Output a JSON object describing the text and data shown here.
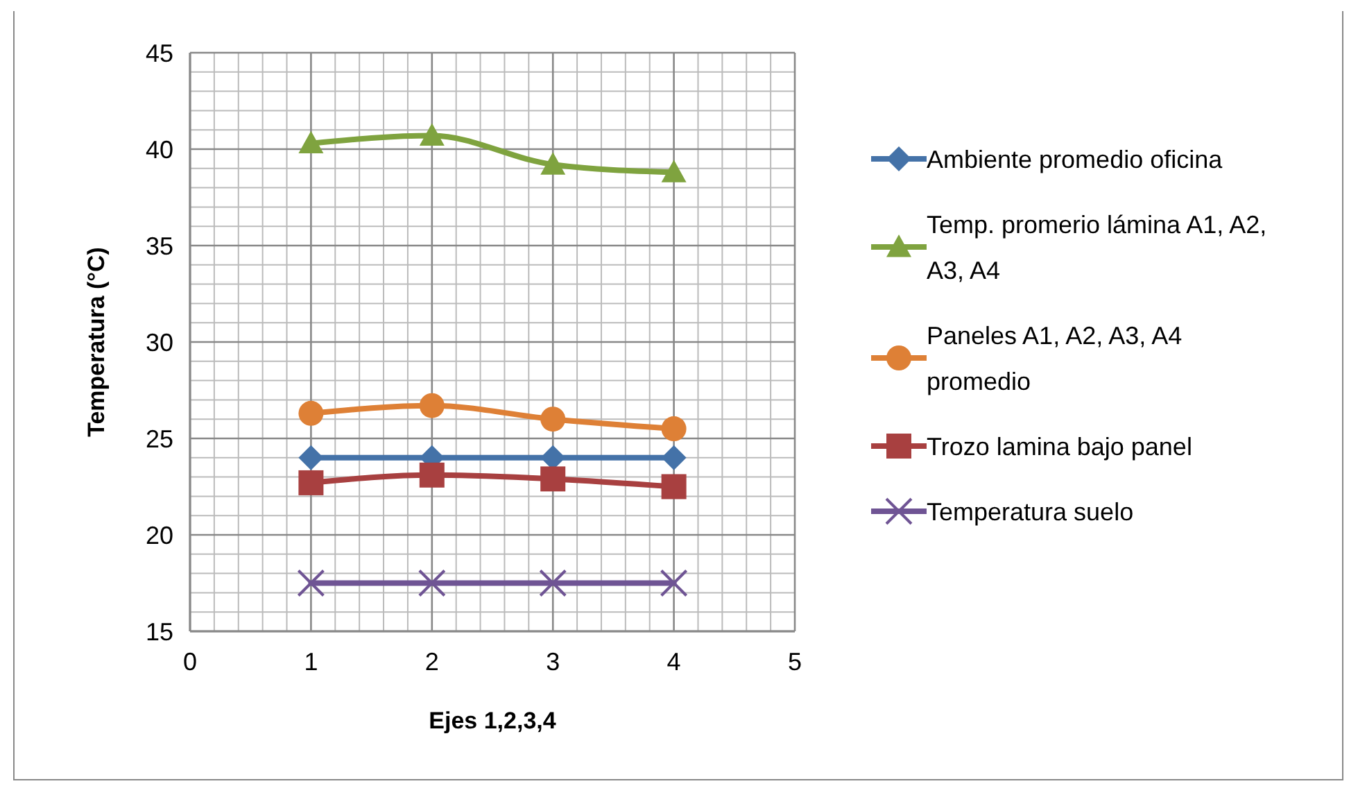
{
  "chart_data": {
    "type": "line",
    "xlabel": "Ejes 1,2,3,4",
    "ylabel": "Temperatura (°C)",
    "x": [
      1,
      2,
      3,
      4
    ],
    "xlim": [
      0,
      5
    ],
    "xticks": [
      0,
      1,
      2,
      3,
      4,
      5
    ],
    "ylim": [
      15,
      45
    ],
    "yticks": [
      15,
      20,
      25,
      30,
      35,
      40,
      45
    ],
    "grid": true,
    "legend": "right",
    "series": [
      {
        "name": "Ambiente promedio oficina",
        "color": "#4472a8",
        "marker": "diamond",
        "values": [
          24,
          24,
          24,
          24
        ]
      },
      {
        "name": "Temp. promerio lámina A1, A2, A3, A4",
        "color": "#7fa33f",
        "marker": "triangle",
        "values": [
          40.3,
          40.7,
          39.2,
          38.8
        ]
      },
      {
        "name": "Paneles A1, A2, A3, A4 promedio",
        "color": "#de8036",
        "marker": "circle",
        "values": [
          26.3,
          26.7,
          26.0,
          25.5
        ]
      },
      {
        "name": "Trozo lamina bajo panel",
        "color": "#a84040",
        "marker": "square",
        "values": [
          22.7,
          23.1,
          22.9,
          22.5
        ]
      },
      {
        "name": "Temperatura suelo",
        "color": "#6f5494",
        "marker": "cross",
        "values": [
          17.5,
          17.5,
          17.5,
          17.5
        ]
      }
    ]
  }
}
